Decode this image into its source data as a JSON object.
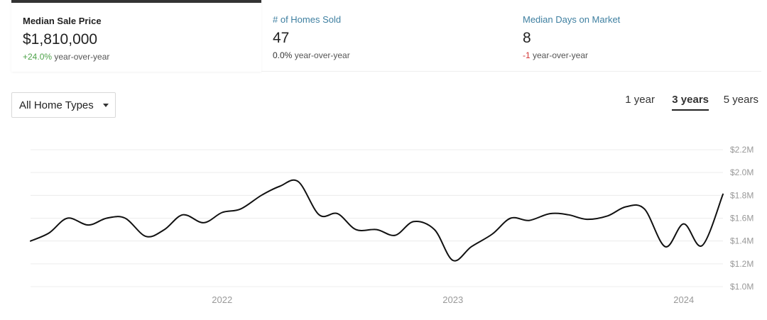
{
  "stats": [
    {
      "label": "Median Sale Price",
      "value": "$1,810,000",
      "change": "+24.0%",
      "change_suffix": " year-over-year",
      "change_color": "#4ea34a"
    },
    {
      "label": "# of Homes Sold",
      "value": "47",
      "change": "0.0%",
      "change_suffix": " year-over-year",
      "change_color": "#333333"
    },
    {
      "label": "Median Days on Market",
      "value": "8",
      "change": "-1",
      "change_suffix": " year-over-year",
      "change_color": "#d23434"
    }
  ],
  "filter": {
    "selected": "All Home Types"
  },
  "range_tabs": [
    {
      "label": "1 year",
      "selected": false
    },
    {
      "label": "3 years",
      "selected": true
    },
    {
      "label": "5 years",
      "selected": false
    }
  ],
  "chart_data": {
    "type": "line",
    "title": "",
    "xlabel": "",
    "ylabel": "",
    "y_ticks": [
      "$1.0M",
      "$1.2M",
      "$1.4M",
      "$1.6M",
      "$1.8M",
      "$2.0M",
      "$2.2M"
    ],
    "ylim": [
      1.0,
      2.2
    ],
    "y_unit": "$M",
    "x_ticks": [
      "2022",
      "2023",
      "2024"
    ],
    "x_tick_values": [
      2022.0,
      2023.0,
      2024.0
    ],
    "xlim": [
      2021.17,
      2024.17
    ],
    "grid": true,
    "series": [
      {
        "color": "#111111",
        "points": [
          [
            2021.17,
            1.4
          ],
          [
            2021.25,
            1.47
          ],
          [
            2021.33,
            1.6
          ],
          [
            2021.42,
            1.54
          ],
          [
            2021.5,
            1.6
          ],
          [
            2021.58,
            1.6
          ],
          [
            2021.67,
            1.44
          ],
          [
            2021.75,
            1.5
          ],
          [
            2021.83,
            1.63
          ],
          [
            2021.92,
            1.56
          ],
          [
            2022.0,
            1.65
          ],
          [
            2022.08,
            1.68
          ],
          [
            2022.17,
            1.8
          ],
          [
            2022.25,
            1.88
          ],
          [
            2022.33,
            1.92
          ],
          [
            2022.42,
            1.63
          ],
          [
            2022.5,
            1.64
          ],
          [
            2022.58,
            1.5
          ],
          [
            2022.67,
            1.5
          ],
          [
            2022.75,
            1.45
          ],
          [
            2022.83,
            1.57
          ],
          [
            2022.92,
            1.5
          ],
          [
            2023.0,
            1.23
          ],
          [
            2023.08,
            1.35
          ],
          [
            2023.17,
            1.46
          ],
          [
            2023.25,
            1.6
          ],
          [
            2023.33,
            1.58
          ],
          [
            2023.42,
            1.64
          ],
          [
            2023.5,
            1.63
          ],
          [
            2023.58,
            1.59
          ],
          [
            2023.67,
            1.62
          ],
          [
            2023.75,
            1.7
          ],
          [
            2023.83,
            1.68
          ],
          [
            2023.92,
            1.35
          ],
          [
            2024.0,
            1.55
          ],
          [
            2024.08,
            1.36
          ],
          [
            2024.17,
            1.81
          ]
        ]
      }
    ]
  }
}
